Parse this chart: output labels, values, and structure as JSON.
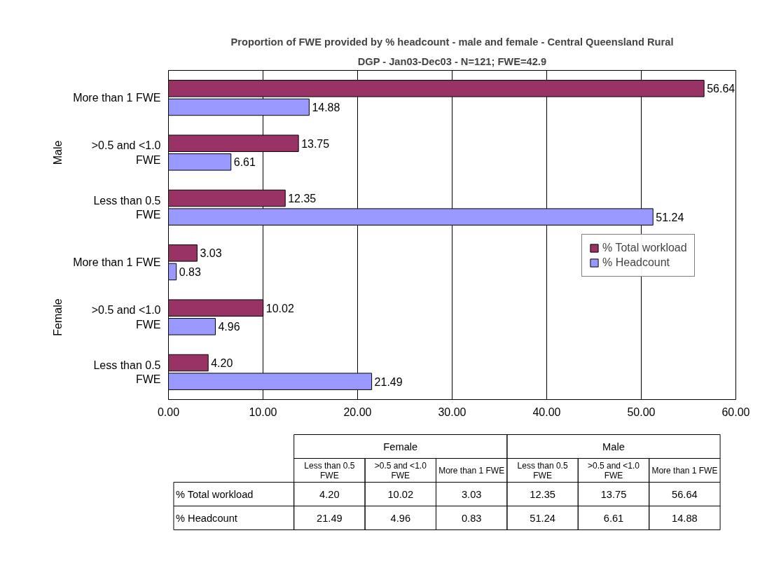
{
  "chart_data": {
    "type": "bar",
    "orientation": "horizontal",
    "title": "Proportion of FWE provided by % headcount - male and female - Central Queensland Rural",
    "subtitle": "DGP - Jan03-Dec03 - N=121; FWE=42.9",
    "categories": [
      "More than 1 FWE",
      ">0.5 and <1.0 FWE",
      "Less than 0.5 FWE",
      "More than 1 FWE",
      ">0.5 and <1.0 FWE",
      "Less than 0.5 FWE"
    ],
    "annotations": [
      "Male",
      "Female"
    ],
    "series": [
      {
        "name": "% Total workload",
        "color": "#993366",
        "values": [
          56.64,
          13.75,
          12.35,
          3.03,
          10.02,
          4.2
        ],
        "value_labels": [
          "56.64",
          "13.75",
          "12.35",
          "3.03",
          "10.02",
          "4.20"
        ]
      },
      {
        "name": "% Headcount",
        "color": "#9999ff",
        "values": [
          14.88,
          6.61,
          51.24,
          0.83,
          4.96,
          21.49
        ],
        "value_labels": [
          "14.88",
          "6.61",
          "51.24",
          "0.83",
          "4.96",
          "21.49"
        ]
      }
    ],
    "xlim": [
      0,
      60
    ],
    "xticks": [
      {
        "value": 0,
        "label": "0.00"
      },
      {
        "value": 10,
        "label": "10.00"
      },
      {
        "value": 20,
        "label": "20.00"
      },
      {
        "value": 30,
        "label": "30.00"
      },
      {
        "value": 40,
        "label": "40.00"
      },
      {
        "value": 50,
        "label": "50.00"
      },
      {
        "value": 60,
        "label": "60.00"
      }
    ],
    "grid": "x",
    "legend": "right"
  }
}
